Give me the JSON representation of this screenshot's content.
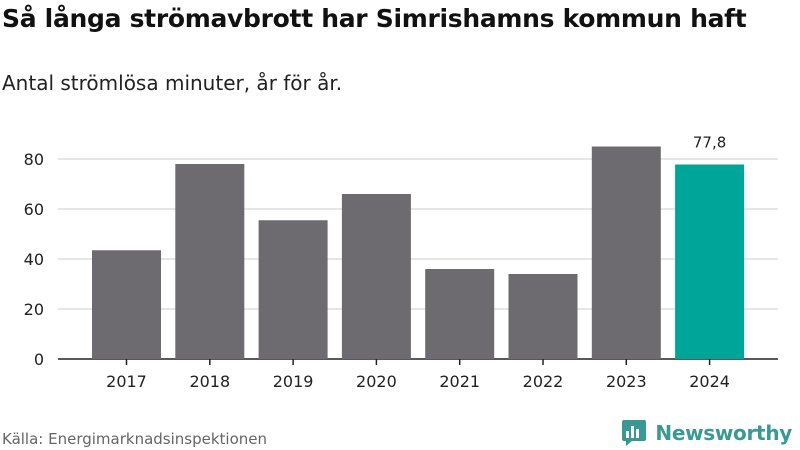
{
  "title": "Så långa strömavbrott har Simrishamns kommun haft",
  "subtitle": "Antal strömlösa minuter, år för år.",
  "source": "Källa: Energimarknadsinspektionen",
  "logo": {
    "text": "Newsworthy",
    "color": "#3a9a93",
    "icon": "bar-chart-bubble-icon"
  },
  "chart_data": {
    "type": "bar",
    "categories": [
      "2017",
      "2018",
      "2019",
      "2020",
      "2021",
      "2022",
      "2023",
      "2024"
    ],
    "values": [
      43.5,
      78,
      55.5,
      66,
      36,
      34,
      85,
      77.8
    ],
    "data_labels": [
      "",
      "",
      "",
      "",
      "",
      "",
      "",
      "77,8"
    ],
    "highlight_index": 7,
    "colors": {
      "bar": "#6d6b70",
      "highlight": "#00a59a",
      "grid": "#dddddd",
      "axis": "#222222"
    },
    "y_ticks": [
      0,
      20,
      40,
      60,
      80
    ],
    "ylim": [
      0,
      90
    ],
    "grid": true
  }
}
